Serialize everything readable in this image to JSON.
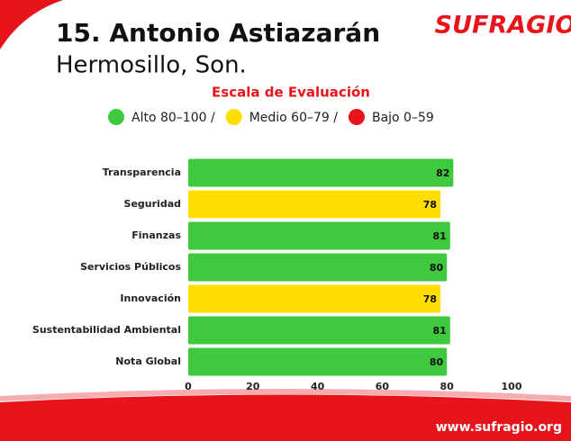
{
  "chart_data": {
    "type": "bar",
    "orientation": "horizontal",
    "title": "15. Antonio Astiazarán",
    "subtitle": "Hermosillo, Son.",
    "brand": "SUFRAGIO",
    "scale_title": "Escala de Evaluación",
    "legend": [
      {
        "label": "Alto 80–100 /",
        "color": "#3ec93e"
      },
      {
        "label": "Medio 60–79 /",
        "color": "#ffde00"
      },
      {
        "label": "Bajo 0–59",
        "color": "#e8141c"
      }
    ],
    "categories": [
      "Transparencia",
      "Seguridad",
      "Finanzas",
      "Servicios Públicos",
      "Innovación",
      "Sustentabilidad Ambiental",
      "Nota Global"
    ],
    "values": [
      82,
      78,
      81,
      80,
      78,
      81,
      80
    ],
    "colors": [
      "#3ec93e",
      "#ffde00",
      "#3ec93e",
      "#3ec93e",
      "#ffde00",
      "#3ec93e",
      "#3ec93e"
    ],
    "xlim": [
      0,
      100
    ],
    "xticks": [
      0,
      20,
      40,
      60,
      80,
      100
    ],
    "footer": "www.sufragio.org"
  }
}
